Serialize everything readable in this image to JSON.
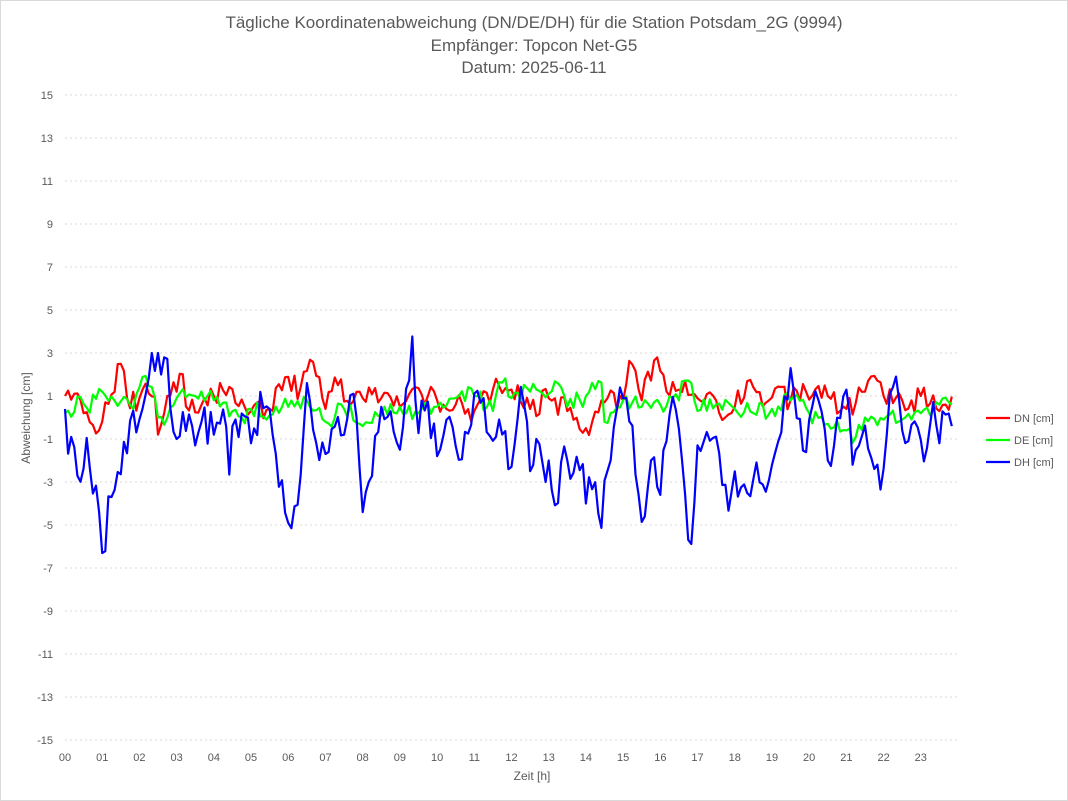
{
  "chart_data": {
    "type": "line",
    "title": "Tägliche Koordinatenabweichung (DN/DE/DH) für die Station Potsdam_2G (9994)",
    "subtitle_lines": [
      "Empfänger: Topcon Net-G5",
      "Datum: 2025-06-11"
    ],
    "xlabel": "Zeit [h]",
    "ylabel": "Abweichung [cm]",
    "xlim": [
      0,
      24
    ],
    "ylim": [
      -15,
      15
    ],
    "x_ticks": [
      "00",
      "01",
      "02",
      "03",
      "04",
      "05",
      "06",
      "07",
      "08",
      "09",
      "10",
      "11",
      "12",
      "13",
      "14",
      "15",
      "16",
      "17",
      "18",
      "19",
      "20",
      "21",
      "22",
      "23"
    ],
    "y_ticks": [
      15,
      13,
      11,
      9,
      7,
      5,
      3,
      1,
      -1,
      -3,
      -5,
      -7,
      -9,
      -11,
      -13,
      -15
    ],
    "grid": "horizontal dotted",
    "legend_position": "right",
    "sample_interval_minutes": 5,
    "series": [
      {
        "name": "DN [cm]",
        "color": "#ff0000",
        "keypoints": [
          [
            0,
            1.0
          ],
          [
            0.1,
            1.3
          ],
          [
            0.2,
            0.6
          ],
          [
            0.3,
            1.3
          ],
          [
            0.5,
            0.2
          ],
          [
            0.7,
            -0.3
          ],
          [
            0.85,
            -0.8
          ],
          [
            1.0,
            -0.2
          ],
          [
            1.2,
            0.8
          ],
          [
            1.5,
            2.5
          ],
          [
            1.7,
            0.6
          ],
          [
            2.0,
            0.9
          ],
          [
            2.4,
            1.3
          ],
          [
            2.5,
            -0.8
          ],
          [
            2.8,
            1.0
          ],
          [
            3.0,
            1.2
          ],
          [
            3.1,
            2.2
          ],
          [
            3.3,
            0.3
          ],
          [
            3.7,
            0.6
          ],
          [
            4.0,
            1.0
          ],
          [
            4.4,
            1.5
          ],
          [
            4.6,
            0.6
          ],
          [
            5.0,
            0.3
          ],
          [
            5.5,
            0.4
          ],
          [
            5.9,
            1.9
          ],
          [
            6.3,
            1.3
          ],
          [
            6.7,
            2.7
          ],
          [
            7.0,
            0.4
          ],
          [
            7.3,
            1.6
          ],
          [
            7.7,
            0.5
          ],
          [
            8.0,
            0.9
          ],
          [
            8.5,
            0.9
          ],
          [
            9.0,
            0.5
          ],
          [
            9.6,
            1.1
          ],
          [
            10.0,
            0.8
          ],
          [
            10.5,
            0.6
          ],
          [
            11.0,
            0.3
          ],
          [
            11.5,
            1.3
          ],
          [
            12.0,
            1.3
          ],
          [
            12.5,
            0.4
          ],
          [
            13.0,
            0.9
          ],
          [
            13.5,
            0.3
          ],
          [
            14.0,
            -0.5
          ],
          [
            14.5,
            0.7
          ],
          [
            15.0,
            0.8
          ],
          [
            15.2,
            3.0
          ],
          [
            15.5,
            0.8
          ],
          [
            15.9,
            2.9
          ],
          [
            16.2,
            1.0
          ],
          [
            16.5,
            1.3
          ],
          [
            17.0,
            0.9
          ],
          [
            17.5,
            0.8
          ],
          [
            17.7,
            -0.3
          ],
          [
            18.0,
            0.5
          ],
          [
            18.4,
            1.8
          ],
          [
            18.8,
            0.6
          ],
          [
            19.1,
            1.4
          ],
          [
            19.5,
            0.8
          ],
          [
            19.9,
            1.2
          ],
          [
            20.5,
            1.0
          ],
          [
            21.0,
            0.4
          ],
          [
            21.5,
            1.2
          ],
          [
            21.6,
            1.8
          ],
          [
            22.0,
            1.0
          ],
          [
            22.3,
            1.0
          ],
          [
            22.6,
            0.3
          ],
          [
            23.0,
            1.0
          ],
          [
            23.4,
            0.4
          ],
          [
            23.6,
            0.6
          ],
          [
            23.85,
            1.0
          ]
        ]
      },
      {
        "name": "DE [cm]",
        "color": "#00ff00",
        "keypoints": [
          [
            0,
            0.2
          ],
          [
            0.2,
            0.0
          ],
          [
            0.4,
            1.0
          ],
          [
            0.6,
            0.4
          ],
          [
            0.8,
            0.8
          ],
          [
            1.0,
            1.2
          ],
          [
            1.2,
            0.7
          ],
          [
            1.4,
            0.5
          ],
          [
            1.6,
            1.0
          ],
          [
            1.8,
            0.2
          ],
          [
            2.0,
            1.4
          ],
          [
            2.3,
            1.7
          ],
          [
            2.5,
            0.0
          ],
          [
            2.7,
            -0.4
          ],
          [
            3.0,
            0.9
          ],
          [
            3.5,
            1.0
          ],
          [
            4.0,
            0.8
          ],
          [
            4.5,
            0.3
          ],
          [
            4.7,
            0.0
          ],
          [
            5.0,
            0.4
          ],
          [
            5.5,
            0.1
          ],
          [
            6.0,
            0.5
          ],
          [
            6.5,
            0.8
          ],
          [
            7.0,
            -0.2
          ],
          [
            7.5,
            0.4
          ],
          [
            8.0,
            -0.4
          ],
          [
            8.5,
            0.1
          ],
          [
            9.0,
            0.5
          ],
          [
            9.5,
            0.2
          ],
          [
            10.0,
            0.5
          ],
          [
            10.5,
            0.9
          ],
          [
            11.0,
            1.0
          ],
          [
            11.5,
            0.3
          ],
          [
            11.8,
            2.0
          ],
          [
            12.0,
            0.9
          ],
          [
            12.5,
            1.2
          ],
          [
            13.0,
            1.1
          ],
          [
            13.2,
            1.8
          ],
          [
            13.5,
            0.5
          ],
          [
            14.0,
            1.0
          ],
          [
            14.4,
            2.0
          ],
          [
            14.5,
            -0.2
          ],
          [
            15.0,
            0.8
          ],
          [
            15.5,
            0.5
          ],
          [
            16.0,
            0.6
          ],
          [
            16.5,
            0.8
          ],
          [
            16.7,
            1.9
          ],
          [
            17.0,
            0.3
          ],
          [
            17.5,
            0.6
          ],
          [
            18.0,
            0.4
          ],
          [
            18.5,
            0.2
          ],
          [
            19.0,
            0.4
          ],
          [
            19.5,
            0.8
          ],
          [
            20.0,
            0.2
          ],
          [
            20.5,
            -0.3
          ],
          [
            21.0,
            -0.6
          ],
          [
            21.2,
            -1.3
          ],
          [
            21.5,
            0.0
          ],
          [
            22.0,
            -0.1
          ],
          [
            22.5,
            -0.1
          ],
          [
            23.0,
            0.2
          ],
          [
            23.5,
            0.6
          ],
          [
            23.85,
            0.6
          ]
        ]
      },
      {
        "name": "DH [cm]",
        "color": "#0000ff",
        "keypoints": [
          [
            0,
            0.4
          ],
          [
            0.1,
            -2.1
          ],
          [
            0.2,
            -0.3
          ],
          [
            0.3,
            -2.6
          ],
          [
            0.45,
            -3.1
          ],
          [
            0.55,
            -0.4
          ],
          [
            0.7,
            -2.9
          ],
          [
            0.85,
            -3.2
          ],
          [
            0.95,
            -5.0
          ],
          [
            1.0,
            -6.3
          ],
          [
            1.1,
            -6.2
          ],
          [
            1.2,
            -2.4
          ],
          [
            1.3,
            -3.7
          ],
          [
            1.45,
            -2.2
          ],
          [
            1.6,
            -1.0
          ],
          [
            1.7,
            -2.0
          ],
          [
            1.8,
            0.4
          ],
          [
            2.0,
            -0.1
          ],
          [
            2.2,
            1.3
          ],
          [
            2.3,
            3.5
          ],
          [
            2.4,
            2.0
          ],
          [
            2.5,
            3.0
          ],
          [
            2.6,
            1.8
          ],
          [
            2.7,
            3.3
          ],
          [
            2.8,
            0.7
          ],
          [
            3.0,
            -1.0
          ],
          [
            3.2,
            0.5
          ],
          [
            3.5,
            -1.3
          ],
          [
            3.7,
            0.0
          ],
          [
            4.0,
            -0.8
          ],
          [
            4.3,
            0.9
          ],
          [
            4.4,
            -3.1
          ],
          [
            4.5,
            -0.4
          ],
          [
            4.8,
            0.3
          ],
          [
            5.0,
            -1.2
          ],
          [
            5.3,
            0.6
          ],
          [
            5.6,
            -0.9
          ],
          [
            5.7,
            -2.1
          ],
          [
            6.0,
            -4.9
          ],
          [
            6.1,
            -5.2
          ],
          [
            6.3,
            -3.5
          ],
          [
            6.5,
            1.6
          ],
          [
            6.7,
            -1.0
          ],
          [
            7.0,
            -1.7
          ],
          [
            7.2,
            -0.3
          ],
          [
            7.5,
            -0.8
          ],
          [
            7.8,
            0.9
          ],
          [
            8.0,
            -4.4
          ],
          [
            8.2,
            -2.7
          ],
          [
            8.5,
            0.5
          ],
          [
            8.8,
            -0.5
          ],
          [
            9.0,
            -1.5
          ],
          [
            9.2,
            1.9
          ],
          [
            9.35,
            4.0
          ],
          [
            9.45,
            -0.8
          ],
          [
            9.7,
            0.5
          ],
          [
            10.0,
            -1.8
          ],
          [
            10.3,
            0.3
          ],
          [
            10.6,
            -2.1
          ],
          [
            10.9,
            -0.5
          ],
          [
            11.1,
            1.4
          ],
          [
            11.4,
            -0.9
          ],
          [
            11.7,
            0.0
          ],
          [
            12.0,
            -2.3
          ],
          [
            12.3,
            1.3
          ],
          [
            12.5,
            -2.5
          ],
          [
            12.7,
            -0.7
          ],
          [
            12.9,
            -3.2
          ],
          [
            13.0,
            -2.0
          ],
          [
            13.2,
            -4.5
          ],
          [
            13.4,
            -1.2
          ],
          [
            13.6,
            -3.0
          ],
          [
            13.9,
            -1.8
          ],
          [
            14.0,
            -4.0
          ],
          [
            14.2,
            -3.2
          ],
          [
            14.4,
            -5.4
          ],
          [
            14.6,
            -2.2
          ],
          [
            14.8,
            0.3
          ],
          [
            15.0,
            0.9
          ],
          [
            15.2,
            -0.4
          ],
          [
            15.4,
            -3.5
          ],
          [
            15.6,
            -4.7
          ],
          [
            15.8,
            -1.5
          ],
          [
            16.0,
            -3.6
          ],
          [
            16.2,
            -0.6
          ],
          [
            16.4,
            0.6
          ],
          [
            16.6,
            -2.2
          ],
          [
            16.8,
            -6.8
          ],
          [
            17.0,
            -1.3
          ],
          [
            17.3,
            -1.0
          ],
          [
            17.6,
            -1.7
          ],
          [
            17.8,
            -4.7
          ],
          [
            18.0,
            -2.5
          ],
          [
            18.3,
            -3.7
          ],
          [
            18.6,
            -2.0
          ],
          [
            18.8,
            -3.7
          ],
          [
            19.0,
            -2.2
          ],
          [
            19.2,
            -0.9
          ],
          [
            19.5,
            2.3
          ],
          [
            19.7,
            -0.5
          ],
          [
            19.9,
            -1.8
          ],
          [
            20.2,
            1.6
          ],
          [
            20.5,
            -2.0
          ],
          [
            20.8,
            -0.3
          ],
          [
            21.0,
            1.3
          ],
          [
            21.2,
            -2.9
          ],
          [
            21.4,
            -0.8
          ],
          [
            21.7,
            -2.0
          ],
          [
            21.9,
            -3.6
          ],
          [
            22.1,
            -0.6
          ],
          [
            22.3,
            2.4
          ],
          [
            22.5,
            -0.6
          ],
          [
            22.7,
            -1.2
          ],
          [
            22.9,
            -0.3
          ],
          [
            23.1,
            -2.2
          ],
          [
            23.3,
            1.1
          ],
          [
            23.5,
            -1.2
          ],
          [
            23.7,
            0.4
          ],
          [
            23.85,
            -0.5
          ]
        ]
      }
    ]
  }
}
